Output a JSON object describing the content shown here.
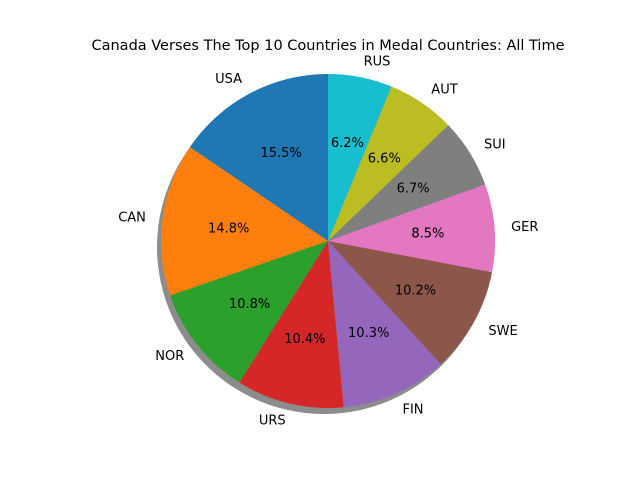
{
  "chart_data": {
    "type": "pie",
    "title": "Canada Verses The Top 10 Countries in Medal Countries: All Time",
    "labels": [
      "USA",
      "CAN",
      "NOR",
      "URS",
      "FIN",
      "SWE",
      "GER",
      "SUI",
      "AUT",
      "RUS"
    ],
    "values": [
      15.5,
      14.8,
      10.8,
      10.4,
      10.3,
      10.2,
      8.5,
      6.7,
      6.6,
      6.2
    ],
    "percent_labels": [
      "15.5%",
      "14.8%",
      "10.8%",
      "10.4%",
      "10.3%",
      "10.2%",
      "8.5%",
      "6.7%",
      "6.6%",
      "6.2%"
    ],
    "colors": [
      "#1f77b4",
      "#ff7f0e",
      "#2ca02c",
      "#d62728",
      "#9467bd",
      "#8c564b",
      "#e377c2",
      "#7f7f7f",
      "#bcbd22",
      "#17becf"
    ],
    "start_angle": "top",
    "direction": "counterclockwise",
    "shadow": true
  }
}
